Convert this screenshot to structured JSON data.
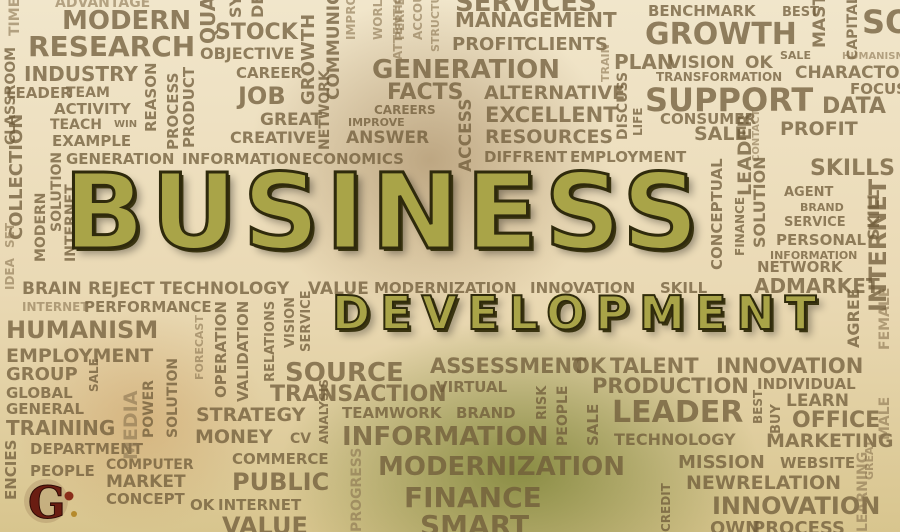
{
  "image": {
    "title": "BUSINESS",
    "subtitle": "DEVELOPMENT"
  },
  "words": [
    "ADVANTAGE",
    "MODERN",
    "RESEARCH",
    "TIME",
    "QUA",
    "STOCK",
    "SY",
    "DE",
    "IMPROVE",
    "SERVICES",
    "MANAGEMENT",
    "BENCHMARK",
    "BEST",
    "MASTER",
    "CAPITAL",
    "SO",
    "CLASSROOM",
    "INDUSTRY",
    "OBJECTIVE",
    "CAREER",
    "PROFIT",
    "CLIENTS",
    "GROWTH",
    "HUMANISM",
    "SALE",
    "GENERATION",
    "PLAN",
    "VISION",
    "OK",
    "CHARACTOR",
    "FOCUS",
    "LEADER",
    "TEAM",
    "JOB",
    "FACTS",
    "ALTERNATIVE",
    "TRANSFORMATION",
    "SUPPORT",
    "DATA",
    "ACTIVITY",
    "REASON",
    "PROCESS",
    "GREAT",
    "GROWTH",
    "COMMUNICATION",
    "IMPROVE",
    "CAREERS",
    "EXCELLENT",
    "CONSUMER",
    "TEACH",
    "WIN",
    "CREATIVE",
    "ANSWER",
    "RESOURCES",
    "SALE",
    "PROFIT",
    "EXAMPLE",
    "PRODUCT",
    "NETWORK",
    "DIFFRENT",
    "EMPLOYMENT",
    "SKILLS",
    "GENERATION",
    "INFORMATION",
    "ECONOMICS",
    "AGENT",
    "BRAND",
    "SERVICE",
    "PERSONAL",
    "INFORMATION",
    "NETWORK",
    "COLLECTION",
    "MODERN",
    "SOLUTION",
    "INTERNET",
    "IDEA",
    "SET",
    "BRAIN",
    "REJECT",
    "TECHNOLOGY",
    "VALUE",
    "MODERNIZATION",
    "INNOVATION",
    "SKILL",
    "AD",
    "MARKET",
    "INTERNET",
    "PERFORMANCE",
    "HUMANISM",
    "AGREE",
    "EMPLOYMENT",
    "GROUP",
    "SOURCE",
    "ASSESSMENT",
    "OK",
    "TALENT",
    "INNOVATION",
    "GLOBAL",
    "GENERAL",
    "TRAINING",
    "TRANSACTION",
    "PRODUCTION",
    "INDIVIDUAL",
    "LEARN",
    "OFFICE",
    "VIRTUAL",
    "STRATEGY",
    "TEAMWORK",
    "BRAND",
    "LEADER",
    "MARKETING",
    "MONEY",
    "CV",
    "INFORMATION",
    "TECHNOLOGY",
    "DEPARTMENT",
    "PEOPLE",
    "COMPUTER",
    "MARKET",
    "CONCEPT",
    "COMMERCE",
    "MODERNIZATION",
    "MISSION",
    "WEBSITE",
    "PUBLIC",
    "NEW",
    "RELATION",
    "OK",
    "INTERNET",
    "FINANCE",
    "INNOVATION",
    "VALUE",
    "SMART",
    "OWN",
    "PROCESS",
    "ENCIES",
    "LEARNING",
    "MALE",
    "FEMALE",
    "INTERNET",
    "SKILL",
    "CONTACT",
    "SOLUTION",
    "FINANCE",
    "LEADER",
    "CONCEPTUAL",
    "RELATIONS",
    "VISION",
    "SERVICE",
    "FORECAST",
    "OPERATION",
    "VALIDATION",
    "MEDIA",
    "POWER",
    "SOLUTION",
    "SALE",
    "RISK",
    "PEOPLE",
    "SALE",
    "CREDIT",
    "ANALYSIS",
    "PROGRESS",
    "BUY",
    "BEST",
    "GREAT",
    "ACCESS",
    "TRAIN",
    "DISCUSS",
    "LIFE",
    "ATTENTION",
    "STRUCTURE",
    "WORLD",
    "PERFECT",
    "ACCOUNT"
  ],
  "logo": {
    "letter": "G",
    "dot": "·"
  }
}
